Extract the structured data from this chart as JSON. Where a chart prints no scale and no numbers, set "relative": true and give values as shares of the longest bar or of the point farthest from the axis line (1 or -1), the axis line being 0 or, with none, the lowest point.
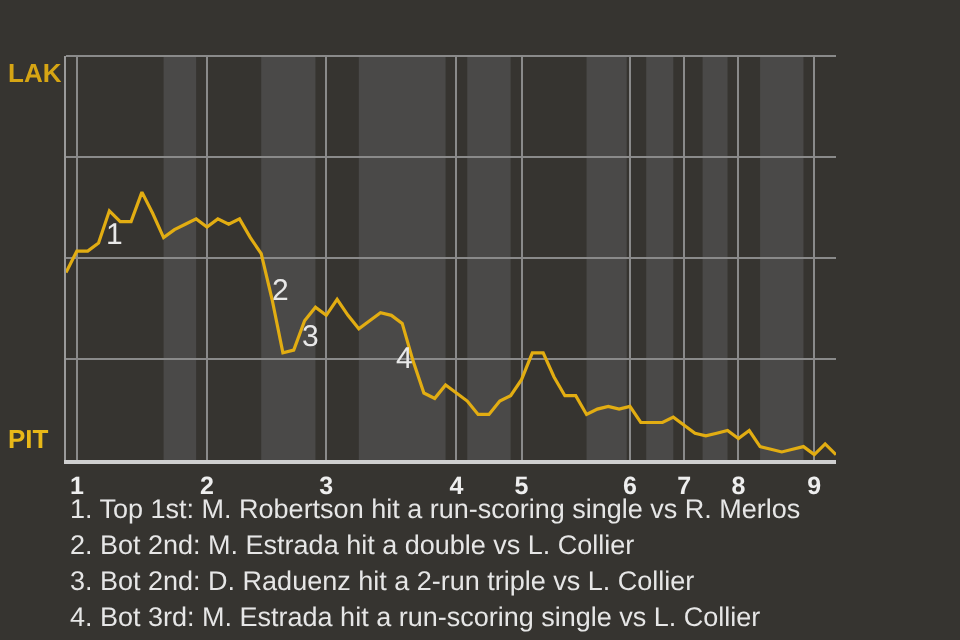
{
  "chart_data": {
    "type": "line",
    "relative": true,
    "categories": [
      null,
      "1",
      null,
      null,
      null,
      null,
      null,
      null,
      null,
      null,
      null,
      null,
      null,
      "2",
      null,
      null,
      null,
      null,
      null,
      null,
      null,
      null,
      null,
      null,
      "3",
      null,
      null,
      null,
      null,
      null,
      null,
      null,
      null,
      null,
      null,
      null,
      "4",
      null,
      null,
      null,
      null,
      null,
      "5",
      null,
      null,
      null,
      null,
      null,
      null,
      null,
      null,
      null,
      "6",
      null,
      null,
      null,
      null,
      "7",
      null,
      null,
      null,
      null,
      "8",
      null,
      null,
      null,
      null,
      null,
      null,
      "9",
      null,
      null
    ],
    "series": [
      {
        "color": "#e2ad12",
        "values": [
          0.7,
          0.78,
          0.78,
          0.81,
          0.93,
          0.89,
          0.89,
          1,
          0.92,
          0.83,
          0.86,
          0.88,
          0.9,
          0.87,
          0.9,
          0.88,
          0.9,
          0.83,
          0.77,
          0.6,
          0.4,
          0.41,
          0.52,
          0.57,
          0.54,
          0.6,
          0.54,
          0.49,
          0.52,
          0.55,
          0.54,
          0.51,
          0.37,
          0.25,
          0.23,
          0.28,
          0.25,
          0.22,
          0.17,
          0.17,
          0.22,
          0.24,
          0.3,
          0.4,
          0.4,
          0.31,
          0.24,
          0.24,
          0.17,
          0.19,
          0.2,
          0.19,
          0.2,
          0.14,
          0.14,
          0.14,
          0.16,
          0.13,
          0.1,
          0.09,
          0.1,
          0.11,
          0.08,
          0.11,
          0.05,
          0.04,
          0.03,
          0.04,
          0.05,
          0.02,
          0.06,
          0.02
        ]
      }
    ],
    "grid": true,
    "annotations": [
      "1",
      "2",
      "3",
      "4",
      "1. Top 1st: M. Robertson hit a run-scoring single vs R. Merlos",
      "2. Bot 2nd: M. Estrada hit a double vs L. Collier",
      "3. Bot 2nd: D. Raduenz hit a 2-run triple vs L. Collier",
      "4. Bot 3rd: M. Estrada hit a run-scoring single vs L. Collier",
      "LAK",
      "PIT"
    ]
  }
}
